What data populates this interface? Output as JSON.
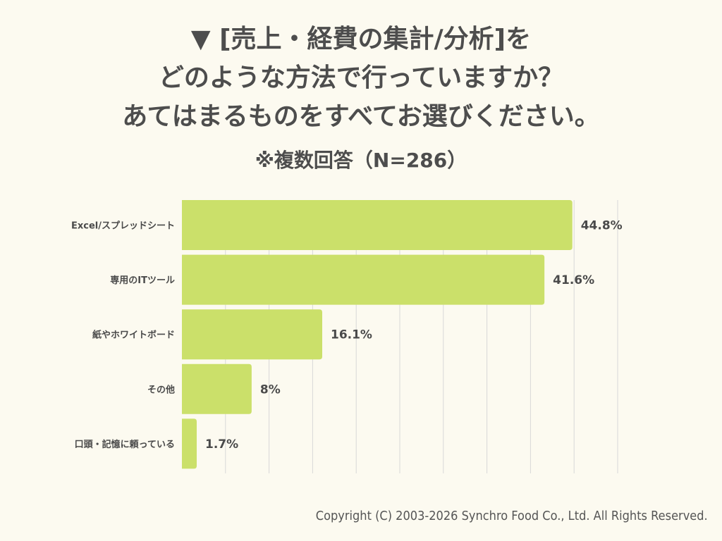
{
  "title_lines": [
    "▼ [売上・経費の集計/分析]を",
    "どのような方法で行っていますか？",
    "あてはまるものをすべてお選びください。"
  ],
  "subtitle": "※複数回答（N=286）",
  "footer": "Copyright (C) 2003-2026  Synchro Food Co., Ltd. All Rights Reserved.",
  "colors": {
    "bar": "#cbe06a",
    "grid": "#d8d8d8",
    "background": "#fcfaf0",
    "text": "#4a4a4a"
  },
  "chart_data": {
    "type": "bar",
    "orientation": "horizontal",
    "categories": [
      "Excel/スプレッドシート",
      "専用のITツール",
      "紙やホワイトボード",
      "その他",
      "口頭・記憶に頼っている"
    ],
    "values": [
      44.8,
      41.6,
      16.1,
      8,
      1.7
    ],
    "value_labels": [
      "44.8%",
      "41.6%",
      "16.1%",
      "8%",
      "1.7%"
    ],
    "xlim": [
      0,
      50
    ],
    "grid": true,
    "title": "",
    "xlabel": "",
    "ylabel": ""
  }
}
